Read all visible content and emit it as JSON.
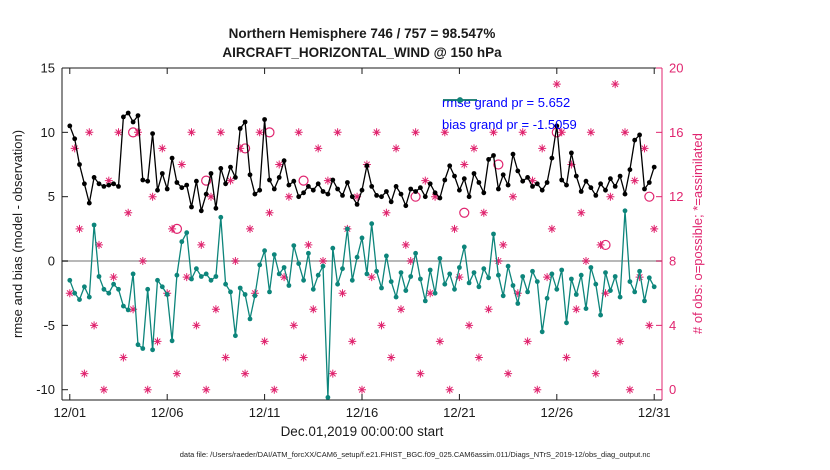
{
  "title": {
    "line1": "Northern Hemisphere 746 / 757 = 98.547%",
    "line2": "AIRCRAFT_HORIZONTAL_WIND @ 150 hPa"
  },
  "caption": "data file: /Users/raeder/DAI/ATM_forcXX/CAM6_setup/f.e21.FHIST_BGC.f09_025.CAM6assim.011/Diags_NTrS_2019-12/obs_diag_output.nc",
  "colors": {
    "rmse": "#000000",
    "bias": "#0d857b",
    "obs": "#e0256f",
    "legend_text": "#0000ff",
    "zero_line": "#b8b8b8",
    "axis": "#1a1a1a"
  },
  "chart_data": {
    "type": "line",
    "title": "Northern Hemisphere 746 / 757 = 98.547%",
    "subtitle": "AIRCRAFT_HORIZONTAL_WIND @ 150 hPa",
    "xlabel": "Dec.01,2019 00:00:00 start",
    "ylabel_left": "rmse and bias (model - observation)",
    "ylabel_right": "# of obs: o=possible; *=assimilated",
    "xlim": [
      0.6,
      31.4
    ],
    "ylim_left": [
      -10.8,
      15
    ],
    "right_axis": {
      "scale": 1.25,
      "offset": -10,
      "note": "left_value = right_value*1.25 - 10; right ticks 0..20 span left -10..15"
    },
    "xticks": {
      "days": [
        1,
        6,
        11,
        16,
        21,
        26,
        31
      ],
      "labels": [
        "12/01",
        "12/06",
        "12/11",
        "12/16",
        "12/21",
        "12/26",
        "12/31"
      ]
    },
    "yticks_left": [
      -10,
      -5,
      0,
      5,
      10,
      15
    ],
    "yticks_right": [
      0,
      4,
      8,
      12,
      16,
      20
    ],
    "x": {
      "start_day": 1,
      "step_days": 0.25,
      "count": 121
    },
    "series": [
      {
        "name": "rmse grand pr = 5.652",
        "color": "#000000",
        "axis": "left",
        "values": [
          10.5,
          9.5,
          7.5,
          6,
          4.5,
          6.5,
          6,
          5.8,
          5.9,
          6,
          5.8,
          11.2,
          11.5,
          10.8,
          11.3,
          6.3,
          6.2,
          9.9,
          5.5,
          6.8,
          5.6,
          8,
          6.1,
          5.7,
          5.9,
          4.2,
          6.2,
          3.9,
          5.2,
          6.8,
          4.1,
          7.2,
          6,
          7.3,
          6.5,
          10.3,
          10.8,
          6.7,
          5.2,
          5.5,
          11,
          6.3,
          5.6,
          6.5,
          7.8,
          5.9,
          6.2,
          5,
          5.3,
          5.8,
          5.5,
          6,
          5.4,
          5.2,
          6.3,
          5.6,
          5.1,
          6.1,
          5,
          4.4,
          5.5,
          7.4,
          5.8,
          5.1,
          5,
          5.4,
          4.6,
          5.8,
          5.2,
          4.3,
          5.6,
          5.4,
          5.7,
          5,
          6,
          5.3,
          4.9,
          6.3,
          7.4,
          6.6,
          5.5,
          6.4,
          5,
          6.8,
          6.1,
          5.3,
          7.9,
          8.2,
          5.6,
          6.7,
          5.9,
          8.3,
          7,
          6.2,
          6.5,
          5.8,
          6,
          5.5,
          6.1,
          8,
          10.5,
          6.3,
          5.9,
          8.4,
          6.6,
          5.4,
          6.2,
          5.7,
          5.1,
          6,
          5.5,
          6.4,
          5.8,
          6.6,
          5.2,
          7.1,
          9.4,
          9.8,
          5.6,
          6.1,
          7.3
        ]
      },
      {
        "name": "bias grand pr = -1.5059",
        "color": "#0d857b",
        "axis": "left",
        "values": [
          -1.5,
          -2.5,
          -3,
          -2,
          -2.8,
          2.8,
          -1.2,
          -2.2,
          -2.5,
          -1.8,
          -2.2,
          -3.5,
          -3.8,
          -1,
          -6.5,
          -6.8,
          -2.2,
          -6.9,
          -1.5,
          -2,
          -2.6,
          -6.2,
          -1.1,
          1.5,
          2.2,
          -1.4,
          -0.6,
          -1.2,
          -1,
          -1.5,
          -1.2,
          3.4,
          -1.8,
          -2.4,
          -5.8,
          -2.1,
          -2.6,
          -4.5,
          -2.7,
          -0.3,
          0.8,
          -2.4,
          0.5,
          -1,
          -0.5,
          -1.9,
          1.2,
          -0.2,
          -1.5,
          0.6,
          -2.2,
          -1.1,
          -0.4,
          -10.6,
          1,
          -1.8,
          -0.6,
          2.5,
          -1.5,
          0.3,
          1.8,
          -1,
          2.9,
          -0.8,
          -2.1,
          0.4,
          -1.6,
          -2.8,
          -0.9,
          -2.3,
          -1.2,
          0.6,
          -1.4,
          -3.1,
          -0.7,
          -2.5,
          0.2,
          -1.8,
          -1,
          -2.2,
          -0.5,
          1.1,
          -1.7,
          -0.9,
          -2,
          -0.6,
          -1.3,
          2.1,
          -1.1,
          -2.7,
          -0.4,
          -1.9,
          -3.3,
          -1.2,
          -2.4,
          -0.8,
          -1.6,
          -5.5,
          -2.9,
          -1,
          -2.2,
          -0.7,
          -4.8,
          -1.4,
          -2.6,
          -1.1,
          -3.7,
          -0.5,
          -1.8,
          -4.2,
          -0.9,
          -2.3,
          -1.2,
          -2.8,
          3.9,
          -1.6,
          -2.4,
          -0.8,
          -3.1,
          -1.3,
          -2
        ]
      }
    ],
    "scatter": {
      "assimilated": {
        "name": "assimilated (*)",
        "marker": "asterisk",
        "axis": "right",
        "values": [
          6,
          15,
          10,
          1,
          16,
          4,
          9,
          0,
          13,
          7,
          16,
          2,
          11,
          5,
          16,
          8,
          0,
          12,
          3,
          15,
          6,
          10,
          1,
          14,
          7,
          16,
          4,
          9,
          0,
          12,
          5,
          16,
          2,
          13,
          8,
          15,
          1,
          10,
          6,
          16,
          3,
          11,
          0,
          14,
          7,
          12,
          4,
          16,
          2,
          9,
          5,
          15,
          8,
          13,
          1,
          16,
          6,
          10,
          3,
          12,
          0,
          14,
          7,
          16,
          4,
          11,
          2,
          15,
          5,
          9,
          8,
          16,
          1,
          13,
          6,
          12,
          3,
          16,
          0,
          10,
          7,
          14,
          4,
          15,
          2,
          11,
          5,
          16,
          8,
          9,
          1,
          12,
          6,
          16,
          3,
          13,
          0,
          15,
          7,
          10,
          19,
          16,
          2,
          14,
          5,
          11,
          8,
          16,
          1,
          9,
          6,
          12,
          19,
          3,
          16,
          0,
          13,
          7,
          15,
          4,
          10
        ]
      },
      "possible": {
        "name": "possible (o)",
        "marker": "circle",
        "axis": "right",
        "x": [
          4.25,
          6.5,
          8,
          10,
          11.25,
          13,
          18.75,
          21.25,
          23,
          26,
          28.5,
          30.75
        ],
        "values": [
          16,
          10,
          13,
          15,
          16,
          13,
          12,
          11,
          14,
          16,
          9,
          12
        ]
      }
    }
  }
}
